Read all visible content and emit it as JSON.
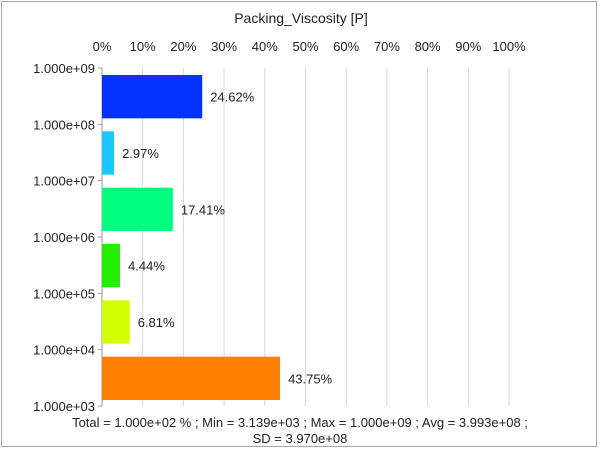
{
  "chart_data": {
    "type": "bar",
    "orientation": "horizontal",
    "title": "Packing_Viscosity [P]",
    "x_axis_position": "top",
    "x_ticks": [
      "0%",
      "10%",
      "20%",
      "30%",
      "40%",
      "50%",
      "60%",
      "70%",
      "80%",
      "90%",
      "100%"
    ],
    "xlim": [
      0,
      100
    ],
    "y_ticks": [
      "1.000e+09",
      "1.000e+08",
      "1.000e+07",
      "1.000e+06",
      "1.000e+05",
      "1.000e+04",
      "1.000e+03"
    ],
    "grid": "vertical",
    "bars": [
      {
        "value": 24.62,
        "label": "24.62%",
        "color": "#0433ff"
      },
      {
        "value": 2.97,
        "label": "2.97%",
        "color": "#19c8ff"
      },
      {
        "value": 17.41,
        "label": "17.41%",
        "color": "#00ff7f"
      },
      {
        "value": 4.44,
        "label": "4.44%",
        "color": "#22ee00"
      },
      {
        "value": 6.81,
        "label": "6.81%",
        "color": "#d4ff00"
      },
      {
        "value": 43.75,
        "label": "43.75%",
        "color": "#ff8000"
      }
    ]
  },
  "footer": {
    "line1": "Total = 1.000e+02 % ; Min = 3.139e+03 ;   Max = 1.000e+09 ;   Avg = 3.993e+08 ;",
    "line2": "SD = 3.970e+08"
  }
}
